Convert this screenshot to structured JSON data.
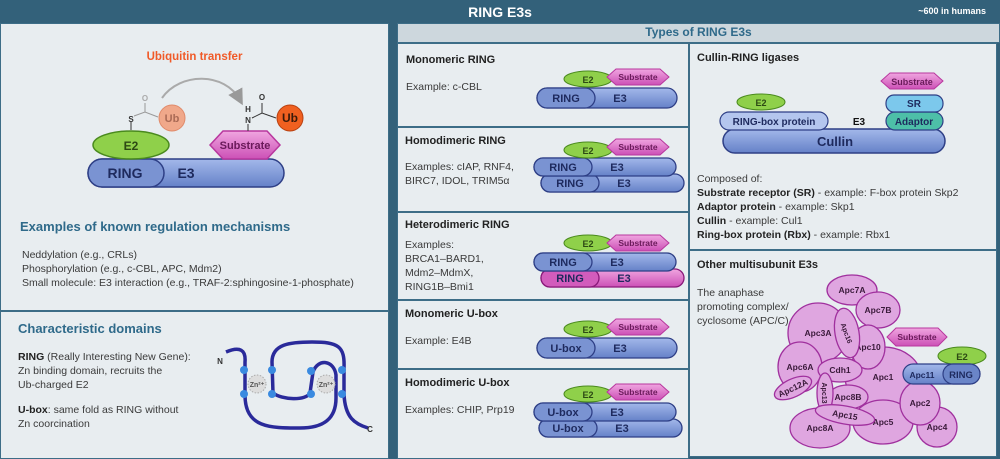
{
  "header": {
    "title": "RING E3s",
    "count": "~600 in humans"
  },
  "left": {
    "transfer_title": "Ubiquitin transfer",
    "labels": {
      "e2": "E2",
      "e3": "E3",
      "ring": "RING",
      "substrate": "Substrate",
      "ub": "Ub",
      "s": "S",
      "o": "O",
      "n": "N",
      "h": "H"
    },
    "regulation": {
      "title": "Examples of known regulation mechanisms",
      "items": [
        "Neddylation (e.g., CRLs)",
        "Phosphorylation (e.g., c-CBL, APC, Mdm2)",
        "Small molecule: E3 interaction (e.g., TRAF-2:sphingosine-1-phosphate)"
      ]
    },
    "domains": {
      "title": "Characteristic domains",
      "ring_term": "RING",
      "ring_desc": " (Really Interesting New Gene):",
      "ring_lines": [
        "Zn binding domain, recruits the",
        "Ub-charged E2"
      ],
      "ubox_term": "U-box",
      "ubox_desc": ": same fold as RING without",
      "ubox_line2": "Zn coorcination",
      "zn": "Zn²⁺",
      "n_term": "N",
      "c_term": "C"
    }
  },
  "types": {
    "title": "Types of RING E3s",
    "panels": [
      {
        "title": "Monomeric RING",
        "lines": [
          "Example: c-CBL"
        ]
      },
      {
        "title": "Homodimeric RING",
        "lines": [
          "Examples: cIAP, RNF4,",
          "BIRC7, IDOL, TRIM5α"
        ]
      },
      {
        "title": "Heterodimeric RING",
        "lines": [
          "Examples:",
          "BRCA1–BARD1,",
          "Mdm2–MdmX,",
          "RING1B–Bmi1"
        ]
      },
      {
        "title": "Monomeric U-box",
        "lines": [
          "Example: E4B"
        ]
      },
      {
        "title": "Homodimeric U-box",
        "lines": [
          "Examples: CHIP, Prp19"
        ]
      }
    ],
    "labels": {
      "e2": "E2",
      "e3": "E3",
      "ring": "RING",
      "ubox": "U-box",
      "substrate": "Substrate"
    }
  },
  "cullin": {
    "title": "Cullin-RING ligases",
    "labels": {
      "e2": "E2",
      "rbx": "RING-box protein",
      "e3": "E3",
      "cullin": "Cullin",
      "sr": "SR",
      "adaptor": "Adaptor",
      "substrate": "Substrate"
    },
    "composed": "Composed of:",
    "items": [
      {
        "term": "Substrate receptor (SR)",
        "desc": " - example: F-box protein Skp2"
      },
      {
        "term": "Adaptor protein",
        "desc": " - example: Skp1"
      },
      {
        "term": "Cullin",
        "desc": " - example: Cul1"
      },
      {
        "term": "Ring-box protein (Rbx)",
        "desc": " -  example: Rbx1"
      }
    ]
  },
  "other": {
    "title": "Other multisubunit E3s",
    "lines": [
      "The anaphase",
      "promoting complex/",
      "cyclosome (APC/C)"
    ],
    "subunits": [
      "Apc7A",
      "Apc7B",
      "Apc3A",
      "Apc16",
      "Apc10",
      "Apc1",
      "Apc6A",
      "Apc12A",
      "Cdh1",
      "Apc13",
      "Apc8B",
      "Apc15",
      "Apc8A",
      "Apc5",
      "Apc2",
      "Apc4"
    ],
    "labels": {
      "substrate": "Substrate",
      "e2": "E2",
      "apc11": "Apc11",
      "ring": "RING"
    }
  },
  "colors": {
    "header": "#33617a",
    "e3": "#7b95d4",
    "e2": "#8fd04a",
    "substrate": "#e9a0dc",
    "ub": "#f06020",
    "apc": "#d9a0dc"
  }
}
